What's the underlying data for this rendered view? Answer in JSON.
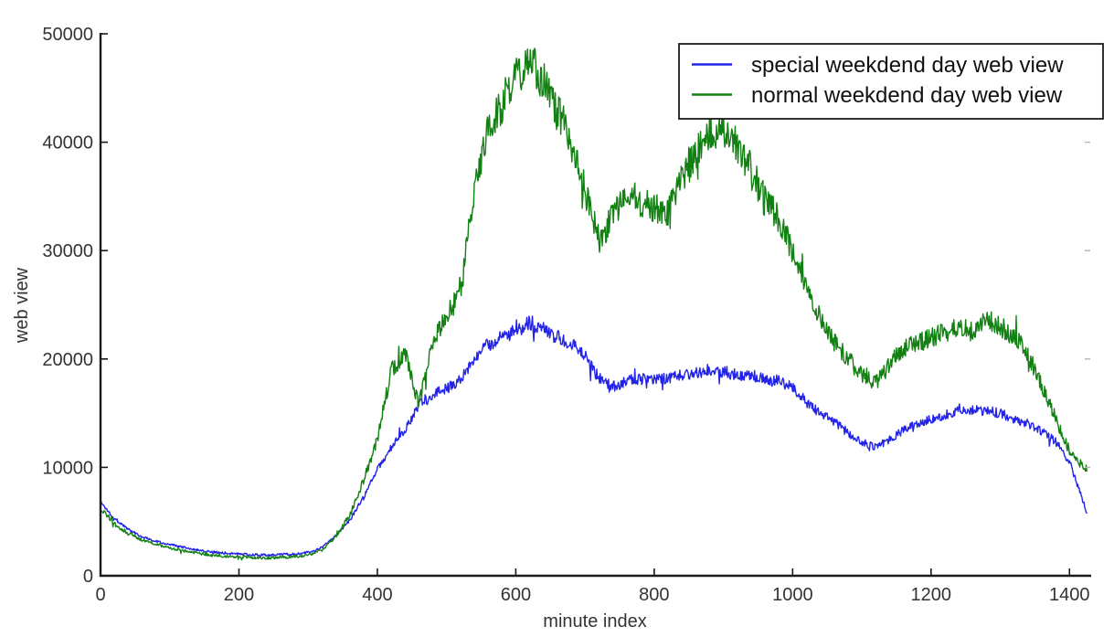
{
  "chart_data": {
    "type": "line",
    "title": "",
    "xlabel": "minute index",
    "ylabel": "web view",
    "xlim": [
      0,
      1430
    ],
    "ylim": [
      0,
      50000
    ],
    "x_ticks": [
      0,
      200,
      400,
      600,
      800,
      1000,
      1200,
      1400
    ],
    "y_ticks": [
      0,
      10000,
      20000,
      30000,
      40000,
      50000
    ],
    "grid": false,
    "legend_position": "upper right",
    "series": [
      {
        "name": "special weekdend day web view",
        "color": "#2323e8",
        "noise_frac": 0.03,
        "noise_min": 110,
        "anchor_x": [
          0,
          20,
          40,
          60,
          80,
          100,
          120,
          140,
          160,
          180,
          200,
          220,
          240,
          260,
          280,
          300,
          320,
          340,
          360,
          380,
          400,
          420,
          440,
          460,
          480,
          500,
          520,
          540,
          560,
          580,
          600,
          620,
          640,
          660,
          680,
          700,
          720,
          740,
          760,
          780,
          800,
          820,
          840,
          860,
          880,
          900,
          920,
          940,
          960,
          980,
          1000,
          1020,
          1040,
          1060,
          1080,
          1100,
          1120,
          1140,
          1160,
          1180,
          1200,
          1220,
          1240,
          1260,
          1280,
          1300,
          1320,
          1340,
          1360,
          1380,
          1400,
          1420,
          1425
        ],
        "anchor_y": [
          6800,
          5300,
          4300,
          3600,
          3200,
          2900,
          2600,
          2400,
          2200,
          2100,
          2000,
          1950,
          1900,
          1950,
          2000,
          2150,
          2600,
          3700,
          5100,
          7200,
          9800,
          11800,
          13500,
          15800,
          16800,
          17300,
          18000,
          20200,
          21300,
          22000,
          22600,
          23400,
          22800,
          22000,
          21500,
          20300,
          18300,
          17400,
          18000,
          18200,
          18000,
          18200,
          18500,
          18800,
          19000,
          18800,
          18600,
          18500,
          18200,
          18000,
          17400,
          16000,
          15000,
          14200,
          13200,
          12300,
          11900,
          12600,
          13400,
          14100,
          14500,
          14800,
          15200,
          15300,
          15200,
          15000,
          14500,
          14000,
          13300,
          12400,
          10500,
          6800,
          5800
        ]
      },
      {
        "name": "normal weekdend day web view",
        "color": "#128012",
        "noise_frac": 0.042,
        "noise_min": 130,
        "anchor_x": [
          0,
          20,
          40,
          60,
          80,
          100,
          120,
          140,
          160,
          180,
          200,
          220,
          240,
          260,
          280,
          300,
          320,
          340,
          360,
          380,
          400,
          420,
          440,
          460,
          480,
          500,
          520,
          540,
          560,
          580,
          600,
          620,
          640,
          660,
          680,
          700,
          720,
          740,
          760,
          780,
          800,
          820,
          840,
          860,
          880,
          900,
          920,
          940,
          960,
          980,
          1000,
          1020,
          1040,
          1060,
          1080,
          1100,
          1120,
          1140,
          1160,
          1180,
          1200,
          1220,
          1240,
          1260,
          1280,
          1300,
          1320,
          1340,
          1360,
          1380,
          1400,
          1420,
          1425
        ],
        "anchor_y": [
          6200,
          4800,
          3900,
          3300,
          2900,
          2600,
          2300,
          2100,
          1900,
          1800,
          1750,
          1700,
          1650,
          1700,
          1750,
          1900,
          2400,
          3600,
          5600,
          8800,
          12500,
          19000,
          20500,
          15800,
          21500,
          24000,
          26000,
          35500,
          41500,
          43500,
          46200,
          47300,
          45800,
          43000,
          40000,
          35500,
          31000,
          33000,
          35500,
          34500,
          34000,
          33500,
          37000,
          39000,
          41000,
          41300,
          39800,
          37500,
          34500,
          33000,
          30000,
          26500,
          24000,
          21500,
          20000,
          18500,
          17800,
          19500,
          21000,
          21500,
          22000,
          22500,
          23000,
          22500,
          23800,
          23000,
          22000,
          20500,
          17500,
          14500,
          11500,
          10000,
          9800
        ]
      }
    ]
  },
  "colors": {
    "axis": "#1a1a1a",
    "tick_label": "#333333",
    "right_minor_tick": "#b3b3b3",
    "background": "#ffffff"
  }
}
